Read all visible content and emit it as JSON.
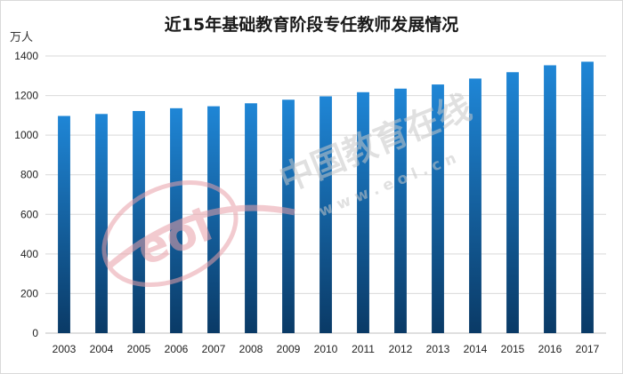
{
  "chart_data": {
    "type": "bar",
    "title": "近15年基础教育阶段专任教师发展情况",
    "ylabel": "万人",
    "xlabel": "",
    "categories": [
      "2003",
      "2004",
      "2005",
      "2006",
      "2007",
      "2008",
      "2009",
      "2010",
      "2011",
      "2012",
      "2013",
      "2014",
      "2015",
      "2016",
      "2017"
    ],
    "values": [
      1097,
      1107,
      1122,
      1136,
      1146,
      1161,
      1179,
      1196,
      1217,
      1235,
      1256,
      1286,
      1318,
      1353,
      1371
    ],
    "ylim": [
      0,
      1400
    ],
    "yticks": [
      0,
      200,
      400,
      600,
      800,
      1000,
      1200,
      1400
    ],
    "grid": true,
    "legend": "none",
    "bar_gradient": [
      "#1f86d6",
      "#0a3a66"
    ]
  },
  "watermark": {
    "logo_text": "eol",
    "site_name": "中国教育在线",
    "site_url": "w w w . e o l . c n"
  },
  "colors": {
    "gridline": "#d9d9d9",
    "axis": "#bfbfbf",
    "watermark": "#d0d0d0",
    "logo_red": "#e8a0a8"
  }
}
